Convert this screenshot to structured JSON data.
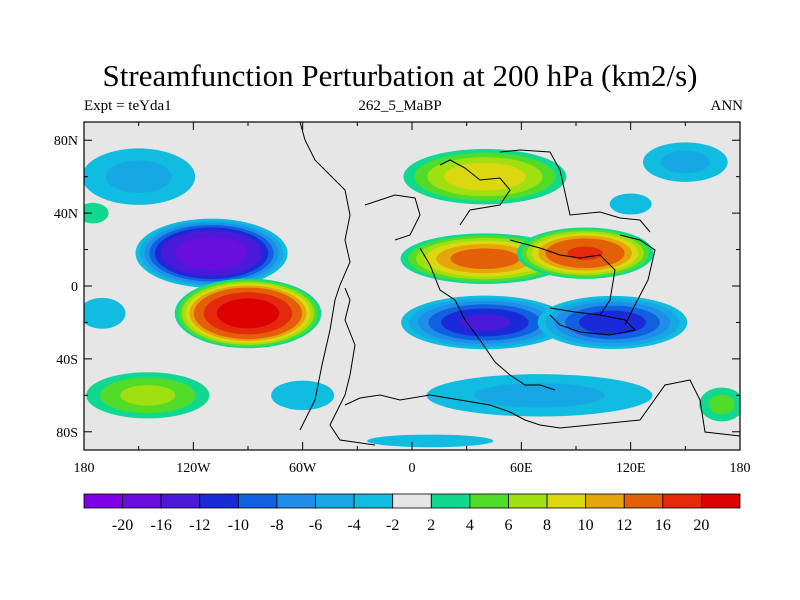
{
  "chart_data": {
    "type": "heatmap",
    "title": "Streamfunction Perturbation at 200 hPa (km2/s)",
    "subtitle_left": "Expt = teYda1",
    "subtitle_center": "262_5_MaBP",
    "subtitle_right": "ANN",
    "x_domain": [
      -180,
      180
    ],
    "y_domain": [
      -90,
      90
    ],
    "x_ticks": [
      {
        "value": -180,
        "label": "180"
      },
      {
        "value": -120,
        "label": "120W"
      },
      {
        "value": -60,
        "label": "60W"
      },
      {
        "value": 0,
        "label": "0"
      },
      {
        "value": 60,
        "label": "60E"
      },
      {
        "value": 120,
        "label": "120E"
      },
      {
        "value": 180,
        "label": "180"
      }
    ],
    "y_ticks": [
      {
        "value": 80,
        "label": "80N"
      },
      {
        "value": 40,
        "label": "40N"
      },
      {
        "value": 0,
        "label": "0"
      },
      {
        "value": -40,
        "label": "40S"
      },
      {
        "value": -80,
        "label": "80S"
      }
    ],
    "colorbar": {
      "labels": [
        "-20",
        "-16",
        "-12",
        "-10",
        "-8",
        "-6",
        "-4",
        "-2",
        "2",
        "4",
        "6",
        "8",
        "10",
        "12",
        "16",
        "20"
      ],
      "colors": [
        "#7f00e6",
        "#6a0ee0",
        "#4b1ad8",
        "#1a2ad8",
        "#1060e0",
        "#1e8ee8",
        "#16a8e4",
        "#10bce0",
        "#e6e6e6",
        "#10d890",
        "#50dc28",
        "#a0e010",
        "#dcd810",
        "#e4a60a",
        "#e46008",
        "#e42a0a",
        "#dc0000"
      ]
    },
    "blobs": [
      {
        "lon": -110,
        "lat": 18,
        "rlon": 44,
        "rlat": 20,
        "value": -20
      },
      {
        "lon": -150,
        "lat": 60,
        "rlon": 40,
        "rlat": 20,
        "value": -5
      },
      {
        "lon": 150,
        "lat": 68,
        "rlon": 30,
        "rlat": 14,
        "value": -5
      },
      {
        "lon": 120,
        "lat": 45,
        "rlon": 20,
        "rlat": 10,
        "value": -3
      },
      {
        "lon": -170,
        "lat": -15,
        "rlon": 18,
        "rlat": 12,
        "value": -4
      },
      {
        "lon": 40,
        "lat": -20,
        "rlon": 50,
        "rlat": 16,
        "value": -13
      },
      {
        "lon": 110,
        "lat": -20,
        "rlon": 45,
        "rlat": 16,
        "value": -12
      },
      {
        "lon": 70,
        "lat": -60,
        "rlon": 80,
        "rlat": 15,
        "value": -5
      },
      {
        "lon": -60,
        "lat": -60,
        "rlon": 30,
        "rlat": 14,
        "value": -3
      },
      {
        "lon": 10,
        "lat": -85,
        "rlon": 60,
        "rlat": 6,
        "value": -3
      },
      {
        "lon": -90,
        "lat": -15,
        "rlon": 42,
        "rlat": 20,
        "value": 24
      },
      {
        "lon": 40,
        "lat": 15,
        "rlon": 50,
        "rlat": 15,
        "value": 14
      },
      {
        "lon": 95,
        "lat": 18,
        "rlon": 40,
        "rlat": 15,
        "value": 17
      },
      {
        "lon": 40,
        "lat": 60,
        "rlon": 50,
        "rlat": 17,
        "value": 10
      },
      {
        "lon": -145,
        "lat": -60,
        "rlon": 40,
        "rlat": 15,
        "value": 7
      },
      {
        "lon": 170,
        "lat": -65,
        "rlon": 16,
        "rlat": 12,
        "value": 5
      },
      {
        "lon": -175,
        "lat": 40,
        "rlon": 12,
        "rlat": 8,
        "value": 4
      }
    ]
  }
}
